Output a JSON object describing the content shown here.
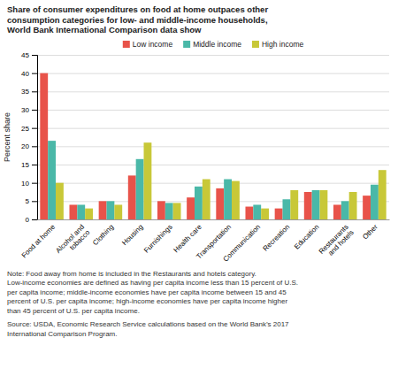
{
  "chart_data": {
    "type": "bar",
    "title": "Share of consumer expenditures on food at home outpaces other\nconsumption categories for low- and middle-income households,\nWorld Bank International Comparison data show",
    "ylabel": "Percent share",
    "categories": [
      "Food at home",
      "Alcohol and\ntobacco",
      "Clothing",
      "Housing",
      "Furnishings",
      "Health care",
      "Transportation",
      "Communication",
      "Recreation",
      "Education",
      "Restaurants\nand hotels",
      "Other"
    ],
    "series": [
      {
        "name": "Low income",
        "color": "#e8534a",
        "values": [
          40,
          4,
          5,
          12,
          5,
          6,
          8.5,
          3.5,
          3,
          7.5,
          4,
          6.5
        ]
      },
      {
        "name": "Middle income",
        "color": "#4ab8a8",
        "values": [
          21.5,
          4,
          5,
          16.5,
          4.5,
          9,
          11,
          4,
          5.5,
          8,
          5,
          9.5
        ]
      },
      {
        "name": "High income",
        "color": "#c8c838",
        "values": [
          10,
          3,
          4,
          21,
          4.5,
          11,
          10.5,
          3,
          8,
          8,
          7.5,
          13.5
        ]
      }
    ],
    "ylim": [
      0,
      45
    ],
    "yticks": [
      0,
      5,
      10,
      15,
      20,
      25,
      30,
      35,
      40,
      45
    ],
    "grid": true,
    "legend": "top",
    "annotations": [
      "Note: Food away from home is included in the Restaurants and hotels category.\nLow-income economies are defined as having per capita income less than 15 percent of U.S.\nper capita income; middle-income economies have per capita income between 15 and 45\npercent of U.S. per capita income; high-income economies have per capita income higher\nthan 45 percent of U.S. per capita income.",
      "Source: USDA, Economic Research Service calculations based on the World Bank’s 2017\nInternational Comparison Program."
    ]
  }
}
